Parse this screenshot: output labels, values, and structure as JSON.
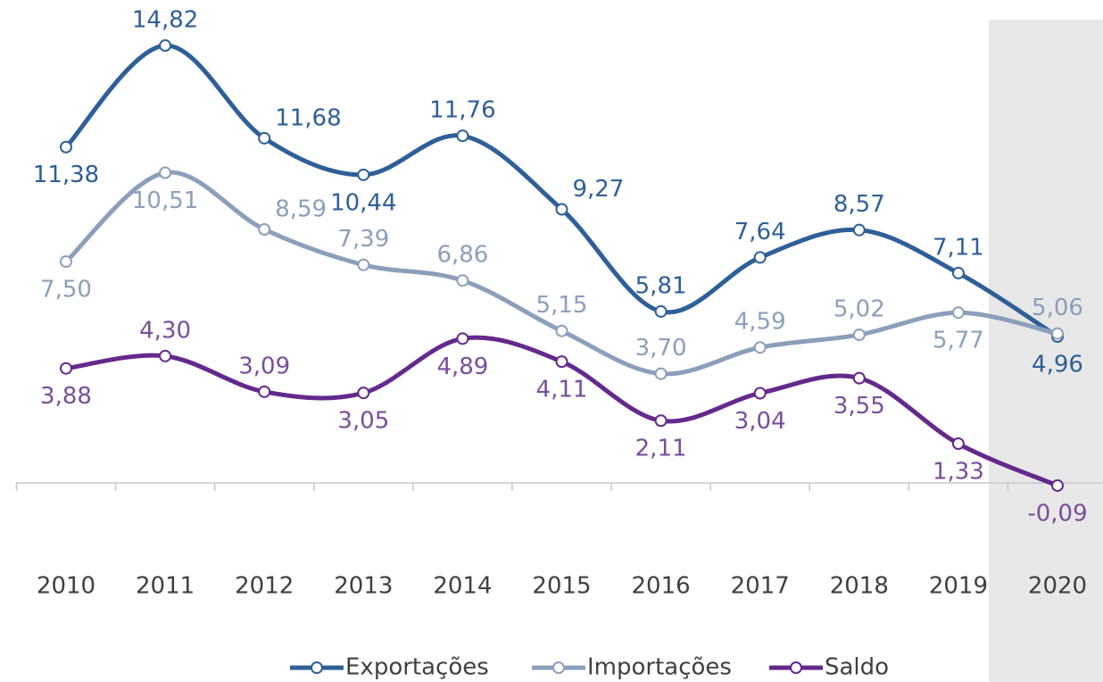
{
  "chart_data": {
    "type": "line",
    "categories": [
      "2010",
      "2011",
      "2012",
      "2013",
      "2014",
      "2015",
      "2016",
      "2017",
      "2018",
      "2019",
      "2020"
    ],
    "ylim": [
      0,
      16
    ],
    "series": [
      {
        "name": "Exportações",
        "color": "#2f5f98",
        "values": [
          11.38,
          14.82,
          11.68,
          10.44,
          11.76,
          9.27,
          5.81,
          7.64,
          8.57,
          7.11,
          4.96
        ],
        "value_labels": [
          "11,38",
          "14,82",
          "11,68",
          "10,44",
          "11,76",
          "9,27",
          "5,81",
          "7,64",
          "8,57",
          "7,11",
          "4,96"
        ]
      },
      {
        "name": "Importações",
        "color": "#8c9fba",
        "values": [
          7.5,
          10.51,
          8.59,
          7.39,
          6.86,
          5.15,
          3.7,
          4.59,
          5.02,
          5.77,
          5.06
        ],
        "value_labels": [
          "7,50",
          "10,51",
          "8,59",
          "7,39",
          "6,86",
          "5,15",
          "3,70",
          "4,59",
          "5,02",
          "5,77",
          "5,06"
        ]
      },
      {
        "name": "Saldo",
        "color": "#64298c",
        "values": [
          3.88,
          4.3,
          3.09,
          3.05,
          4.89,
          4.11,
          2.11,
          3.04,
          3.55,
          1.33,
          -0.09
        ],
        "value_labels": [
          "3,88",
          "4,30",
          "3,09",
          "3,05",
          "4,89",
          "4,11",
          "2,11",
          "3,04",
          "3,55",
          "1,33",
          "-0,09"
        ]
      }
    ]
  }
}
